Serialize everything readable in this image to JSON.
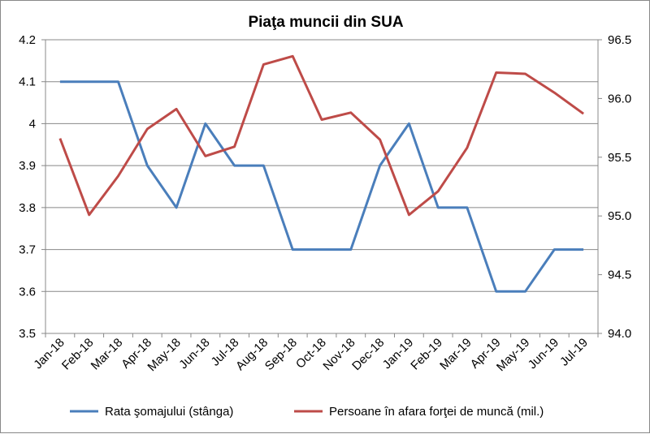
{
  "chart_data": {
    "type": "line",
    "title": "Piaţa muncii din SUA",
    "categories": [
      "Jan-18",
      "Feb-18",
      "Mar-18",
      "Apr-18",
      "May-18",
      "Jun-18",
      "Jul-18",
      "Aug-18",
      "Sep-18",
      "Oct-18",
      "Nov-18",
      "Dec-18",
      "Jan-19",
      "Feb-19",
      "Mar-19",
      "Apr-19",
      "May-19",
      "Jun-19",
      "Jul-19"
    ],
    "y_left": {
      "min": 3.5,
      "max": 4.2,
      "step": 0.1,
      "ticks": [
        "3.5",
        "3.6",
        "3.7",
        "3.8",
        "3.9",
        "4",
        "4.1",
        "4.2"
      ]
    },
    "y_right": {
      "min": 94.0,
      "max": 96.5,
      "step": 0.5,
      "ticks": [
        "94.0",
        "94.5",
        "95.0",
        "95.5",
        "96.0",
        "96.5"
      ]
    },
    "series": [
      {
        "name": "Rata şomajului (stânga)",
        "axis": "left",
        "color": "#4A7EBB",
        "values": [
          4.1,
          4.1,
          4.1,
          3.9,
          3.8,
          4.0,
          3.9,
          3.9,
          3.7,
          3.7,
          3.7,
          3.9,
          4.0,
          3.8,
          3.8,
          3.6,
          3.6,
          3.7,
          3.7
        ]
      },
      {
        "name": "Persoane în afara forţei de muncă (mil.)",
        "axis": "right",
        "color": "#BE4B48",
        "values": [
          95.66,
          95.01,
          95.34,
          95.74,
          95.91,
          95.51,
          95.59,
          96.29,
          96.36,
          95.82,
          95.88,
          95.65,
          95.01,
          95.21,
          95.58,
          96.22,
          96.21,
          96.05,
          95.87
        ]
      }
    ],
    "grid": "horizontal",
    "legend": "bottom"
  }
}
